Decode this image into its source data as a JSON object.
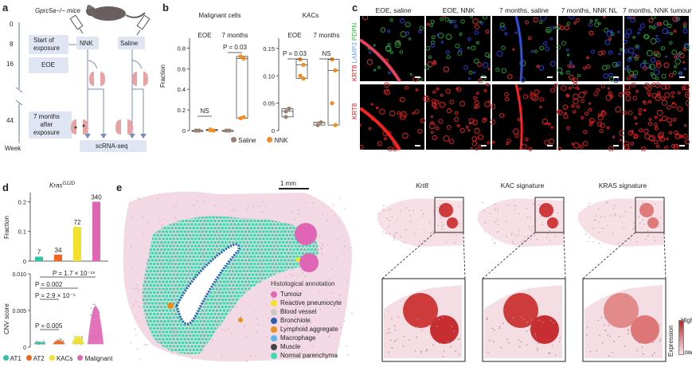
{
  "panel_a": {
    "label": "a",
    "mice_label": "Gprc5a−/− mice",
    "week_ticks": [
      "0",
      "8",
      "16",
      "44"
    ],
    "axis_label": "Week",
    "start_box": [
      "Start of",
      "exposure"
    ],
    "nnk_box": "NNK",
    "saline_box": "Saline",
    "eoe_box": "EOE",
    "seven_months_box": [
      "7 months",
      "after",
      "exposure"
    ],
    "scrna_box": "scRNA-seq"
  },
  "panel_b": {
    "label": "b",
    "y_label": "Fraction",
    "legend": [
      "Saline",
      "NNK"
    ],
    "colors": {
      "saline": "#9a8070",
      "nnk": "#f28c1e"
    }
  },
  "panel_c": {
    "label": "c",
    "columns": [
      "EOE, saline",
      "EOE, NNK",
      "7 months, saline",
      "7 months, NNK NL",
      "7 months, NNK tumour"
    ],
    "row1_label": [
      "KRT8",
      " LAMP3",
      " PDPN"
    ],
    "row2_label": "KRT8"
  },
  "panel_d": {
    "label": "d",
    "bar_title": "KrasG12D",
    "y_label_top": "Fraction",
    "y_label_bottom": "CNV score",
    "legend": [
      "AT1",
      "AT2",
      "KACs",
      "Malignant"
    ],
    "colors": [
      "#2cc4a4",
      "#f0641e",
      "#f2e02a",
      "#e065b4"
    ],
    "pvalues": [
      "P = 1.7 × 10⁻¹⁶",
      "P = 0.002",
      "P = 2.9 × 10⁻⁵",
      "P = 0.005"
    ]
  },
  "panel_e": {
    "label": "e",
    "scale_bar": "1 mm",
    "annotation_title": "Histological annotation",
    "annotations": [
      {
        "name": "Tumour",
        "color": "#e065b4"
      },
      {
        "name": "Reactive pneumocyte",
        "color": "#f2e02a"
      },
      {
        "name": "Blood vessel",
        "color": "#c8c8c8"
      },
      {
        "name": "Bronchiole",
        "color": "#2f5fb0"
      },
      {
        "name": "Lymphoid aggregate",
        "color": "#e8901e"
      },
      {
        "name": "Macrophage",
        "color": "#5ab8e8"
      },
      {
        "name": "Muscle",
        "color": "#444444"
      },
      {
        "name": "Normal parenchyma",
        "color": "#3fd9b0"
      }
    ],
    "expr_titles": [
      "Krt8",
      "KAC signature",
      "KRAS signature"
    ],
    "expression_label": "Expression",
    "high": "High",
    "low": "Low"
  },
  "chart_data": [
    {
      "type": "scatter",
      "title": "Malignant cells",
      "ylabel": "Fraction",
      "groups": [
        "EOE",
        "7 months"
      ],
      "ylim": [
        0,
        0.85
      ],
      "yticks": [
        "0",
        "0.2",
        "0.4",
        "0.6",
        "0.8"
      ],
      "series": [
        {
          "name": "Saline",
          "EOE": [
            0.0,
            0.0
          ],
          "7 months": [
            0.0,
            0.0
          ]
        },
        {
          "name": "NNK",
          "EOE": [
            0.005,
            0.0,
            0.01
          ],
          "7 months": [
            0.72,
            0.7,
            0.12,
            0.13
          ]
        }
      ],
      "annotations": [
        "NS",
        "P = 0.03"
      ]
    },
    {
      "type": "scatter",
      "title": "KACs",
      "groups": [
        "EOE",
        "7 months"
      ],
      "ylim": [
        0,
        0.16
      ],
      "yticks": [
        "0",
        "0.05",
        "0.10",
        "0.15"
      ],
      "series": [
        {
          "name": "Saline",
          "EOE": [
            0.025,
            0.04,
            0.035
          ],
          "7 months": [
            0.01,
            0.015
          ]
        },
        {
          "name": "NNK",
          "EOE": [
            0.13,
            0.12,
            0.1,
            0.095
          ],
          "7 months": [
            0.13,
            0.11,
            0.05,
            0.01
          ]
        }
      ],
      "annotations": [
        "P = 0.03",
        "NS"
      ]
    },
    {
      "type": "bar",
      "title": "KrasG12D",
      "ylabel": "Fraction",
      "categories": [
        "AT1",
        "AT2",
        "KACs",
        "Malignant"
      ],
      "values": [
        0.015,
        0.022,
        0.115,
        0.2
      ],
      "labels": [
        "7",
        "34",
        "72",
        "340"
      ],
      "ylim": [
        0,
        0.22
      ],
      "yticks": [
        "0",
        "0.1",
        "0.2"
      ]
    },
    {
      "type": "box",
      "ylabel": "CNV score",
      "categories": [
        "AT1",
        "AT2",
        "KACs",
        "Malignant"
      ],
      "ylim": [
        0,
        0.01
      ],
      "yticks": [
        "0",
        "0.005",
        "0.010"
      ]
    }
  ]
}
